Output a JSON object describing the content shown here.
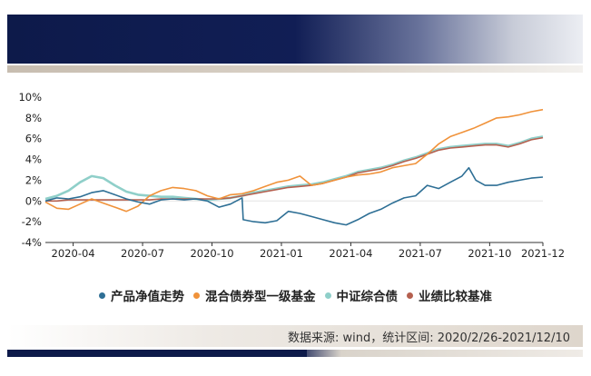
{
  "chart_data": {
    "type": "line",
    "title": "",
    "xlabel": "",
    "ylabel": "",
    "ylim": [
      -4,
      10
    ],
    "y_ticks": [
      "10%",
      "8%",
      "6%",
      "4%",
      "2%",
      "0%",
      "-2%",
      "-4%"
    ],
    "x_ticks": [
      "2020-04",
      "2020-07",
      "2020-10",
      "2021-01",
      "2021-04",
      "2021-07",
      "2021-10",
      "2021-12"
    ],
    "x_tick_months": [
      1.2,
      4.2,
      7.2,
      10.2,
      13.2,
      16.2,
      19.2,
      21.5
    ],
    "xlim": [
      0,
      21.5
    ],
    "series": [
      {
        "name": "产品净值走势",
        "color": "#2e6f95",
        "x": [
          0,
          0.5,
          1.0,
          1.5,
          2.0,
          2.5,
          3.0,
          3.5,
          4.0,
          4.5,
          5.0,
          5.5,
          6.0,
          6.5,
          7.0,
          7.5,
          8.0,
          8.5,
          8.55,
          9.0,
          9.5,
          10.0,
          10.5,
          11.0,
          11.5,
          12.0,
          12.5,
          13.0,
          13.5,
          14.0,
          14.5,
          15.0,
          15.5,
          16.0,
          16.5,
          17.0,
          17.5,
          18.0,
          18.3,
          18.6,
          19.0,
          19.5,
          20.0,
          20.5,
          21.0,
          21.5
        ],
        "values": [
          0.0,
          0.3,
          0.2,
          0.4,
          0.8,
          1.0,
          0.6,
          0.2,
          -0.1,
          -0.3,
          0.1,
          0.2,
          0.1,
          0.2,
          0.0,
          -0.6,
          -0.3,
          0.3,
          -1.8,
          -2.0,
          -2.1,
          -1.9,
          -1.0,
          -1.2,
          -1.5,
          -1.8,
          -2.1,
          -2.3,
          -1.8,
          -1.2,
          -0.8,
          -0.2,
          0.3,
          0.5,
          1.5,
          1.2,
          1.8,
          2.4,
          3.2,
          2.0,
          1.5,
          1.5,
          1.8,
          2.0,
          2.2,
          2.3
        ]
      },
      {
        "name": "混合债券型一级基金",
        "color": "#f0923a",
        "x": [
          0,
          0.5,
          1.0,
          1.5,
          2.0,
          2.5,
          3.0,
          3.5,
          4.0,
          4.5,
          5.0,
          5.5,
          6.0,
          6.5,
          7.0,
          7.5,
          8.0,
          8.5,
          9.0,
          9.5,
          10.0,
          10.5,
          11.0,
          11.5,
          12.0,
          12.5,
          13.0,
          13.5,
          14.0,
          14.5,
          15.0,
          15.5,
          16.0,
          16.5,
          17.0,
          17.5,
          18.0,
          18.5,
          19.0,
          19.5,
          20.0,
          20.5,
          21.0,
          21.5
        ],
        "values": [
          -0.1,
          -0.7,
          -0.8,
          -0.3,
          0.2,
          -0.2,
          -0.6,
          -1.0,
          -0.5,
          0.5,
          1.0,
          1.3,
          1.2,
          1.0,
          0.5,
          0.2,
          0.6,
          0.7,
          1.0,
          1.4,
          1.8,
          2.0,
          2.4,
          1.5,
          1.7,
          2.0,
          2.3,
          2.5,
          2.6,
          2.8,
          3.2,
          3.4,
          3.6,
          4.5,
          5.5,
          6.2,
          6.6,
          7.0,
          7.5,
          8.0,
          8.1,
          8.3,
          8.6,
          8.8
        ]
      },
      {
        "name": "中证综合债",
        "color": "#8fcfc9",
        "x": [
          0,
          0.5,
          1.0,
          1.5,
          2.0,
          2.5,
          3.0,
          3.5,
          4.0,
          4.5,
          5.0,
          5.5,
          6.0,
          6.5,
          7.0,
          7.5,
          8.0,
          8.5,
          9.0,
          9.5,
          10.0,
          10.5,
          11.0,
          11.5,
          12.0,
          12.5,
          13.0,
          13.5,
          14.0,
          14.5,
          15.0,
          15.5,
          16.0,
          16.5,
          17.0,
          17.5,
          18.0,
          18.5,
          19.0,
          19.5,
          20.0,
          20.5,
          21.0,
          21.5
        ],
        "values": [
          0.2,
          0.5,
          1.0,
          1.8,
          2.4,
          2.2,
          1.5,
          0.9,
          0.6,
          0.5,
          0.4,
          0.4,
          0.3,
          0.2,
          0.1,
          0.2,
          0.3,
          0.5,
          0.8,
          1.0,
          1.2,
          1.4,
          1.5,
          1.6,
          1.8,
          2.1,
          2.4,
          2.8,
          3.0,
          3.2,
          3.5,
          3.9,
          4.2,
          4.6,
          5.0,
          5.2,
          5.3,
          5.4,
          5.5,
          5.5,
          5.3,
          5.6,
          6.0,
          6.2
        ]
      },
      {
        "name": "业绩比较基准",
        "color": "#b5604f",
        "x": [
          0,
          0.5,
          1.0,
          1.5,
          2.0,
          2.5,
          3.0,
          3.5,
          4.0,
          4.5,
          5.0,
          5.5,
          6.0,
          6.5,
          7.0,
          7.5,
          8.0,
          8.5,
          9.0,
          9.5,
          10.0,
          10.5,
          11.0,
          11.5,
          12.0,
          12.5,
          13.0,
          13.5,
          14.0,
          14.5,
          15.0,
          15.5,
          16.0,
          16.5,
          17.0,
          17.5,
          18.0,
          18.5,
          19.0,
          19.5,
          20.0,
          20.5,
          21.0,
          21.5
        ],
        "values": [
          0.0,
          0.0,
          0.1,
          0.1,
          0.1,
          0.1,
          0.1,
          0.1,
          0.1,
          0.1,
          0.2,
          0.2,
          0.2,
          0.2,
          0.2,
          0.2,
          0.3,
          0.5,
          0.7,
          0.9,
          1.1,
          1.3,
          1.4,
          1.5,
          1.7,
          2.0,
          2.3,
          2.7,
          2.9,
          3.1,
          3.4,
          3.8,
          4.1,
          4.5,
          4.9,
          5.1,
          5.2,
          5.3,
          5.4,
          5.4,
          5.2,
          5.5,
          5.9,
          6.1
        ]
      }
    ]
  },
  "source_text": "数据来源: wind，统计区间: 2020/2/26-2021/12/10"
}
